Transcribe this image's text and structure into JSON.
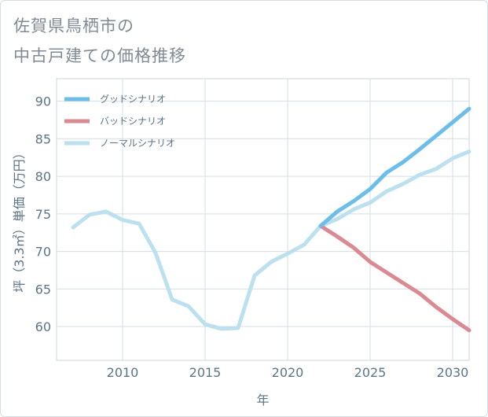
{
  "chart_data": {
    "type": "line",
    "title": "佐賀県鳥栖市の\n中古戸建ての価格推移",
    "xlabel": "年",
    "ylabel": "坪（3.3㎡）単価（万円）",
    "xlim": [
      2006,
      2031
    ],
    "ylim": [
      55.5,
      93
    ],
    "x_ticks": [
      2010,
      2015,
      2020,
      2025,
      2030
    ],
    "y_ticks": [
      60,
      65,
      70,
      75,
      80,
      85,
      90
    ],
    "grid": true,
    "legend_position": "top-left",
    "series": [
      {
        "name": "グッドシナリオ",
        "color": "#6dbdea",
        "x": [
          2022,
          2023,
          2024,
          2025,
          2026,
          2027,
          2028,
          2029,
          2030,
          2031
        ],
        "values": [
          73.4,
          75.3,
          76.7,
          78.3,
          80.5,
          81.9,
          83.6,
          85.4,
          87.2,
          89.0
        ]
      },
      {
        "name": "バッドシナリオ",
        "color": "#d98a92",
        "x": [
          2022,
          2023,
          2024,
          2025,
          2026,
          2027,
          2028,
          2029,
          2030,
          2031
        ],
        "values": [
          73.4,
          72.0,
          70.5,
          68.6,
          67.2,
          65.8,
          64.4,
          62.6,
          61.0,
          59.5
        ]
      },
      {
        "name": "ノーマルシナリオ",
        "color": "#bde0ef",
        "x": [
          2007,
          2008,
          2009,
          2010,
          2011,
          2012,
          2013,
          2014,
          2015,
          2016,
          2017,
          2018,
          2019,
          2020,
          2021,
          2022,
          2023,
          2024,
          2025,
          2026,
          2027,
          2028,
          2029,
          2030,
          2031
        ],
        "values": [
          73.2,
          74.9,
          75.3,
          74.2,
          73.7,
          69.8,
          63.6,
          62.7,
          60.3,
          59.7,
          59.8,
          66.8,
          68.6,
          69.7,
          70.9,
          73.4,
          74.3,
          75.6,
          76.5,
          78.0,
          79.0,
          80.2,
          81.0,
          82.4,
          83.3
        ]
      }
    ]
  }
}
